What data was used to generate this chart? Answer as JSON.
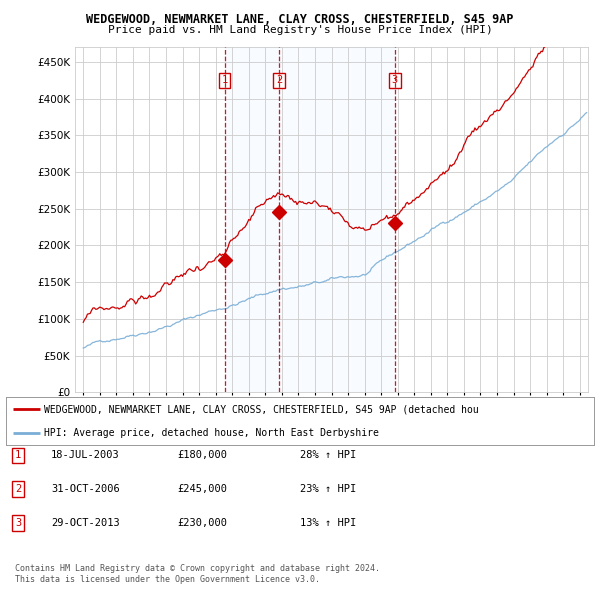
{
  "title1": "WEDGEWOOD, NEWMARKET LANE, CLAY CROSS, CHESTERFIELD, S45 9AP",
  "title2": "Price paid vs. HM Land Registry's House Price Index (HPI)",
  "legend_red": "WEDGEWOOD, NEWMARKET LANE, CLAY CROSS, CHESTERFIELD, S45 9AP (detached hou",
  "legend_blue": "HPI: Average price, detached house, North East Derbyshire",
  "footer1": "Contains HM Land Registry data © Crown copyright and database right 2024.",
  "footer2": "This data is licensed under the Open Government Licence v3.0.",
  "transactions": [
    {
      "num": 1,
      "date": "18-JUL-2003",
      "price": "£180,000",
      "hpi": "28% ↑ HPI"
    },
    {
      "num": 2,
      "date": "31-OCT-2006",
      "price": "£245,000",
      "hpi": "23% ↑ HPI"
    },
    {
      "num": 3,
      "date": "29-OCT-2013",
      "price": "£230,000",
      "hpi": "13% ↑ HPI"
    }
  ],
  "vline_dates": [
    2003.54,
    2006.83,
    2013.83
  ],
  "vline_color": "#cc0000",
  "ylim": [
    0,
    470000
  ],
  "yticks": [
    0,
    50000,
    100000,
    150000,
    200000,
    250000,
    300000,
    350000,
    400000,
    450000
  ],
  "xlim_start": 1994.5,
  "xlim_end": 2025.5,
  "red_color": "#cc0000",
  "blue_color": "#7aaed6",
  "shade_color": "#ddeeff",
  "bg_color": "#ffffff",
  "grid_color": "#cccccc"
}
